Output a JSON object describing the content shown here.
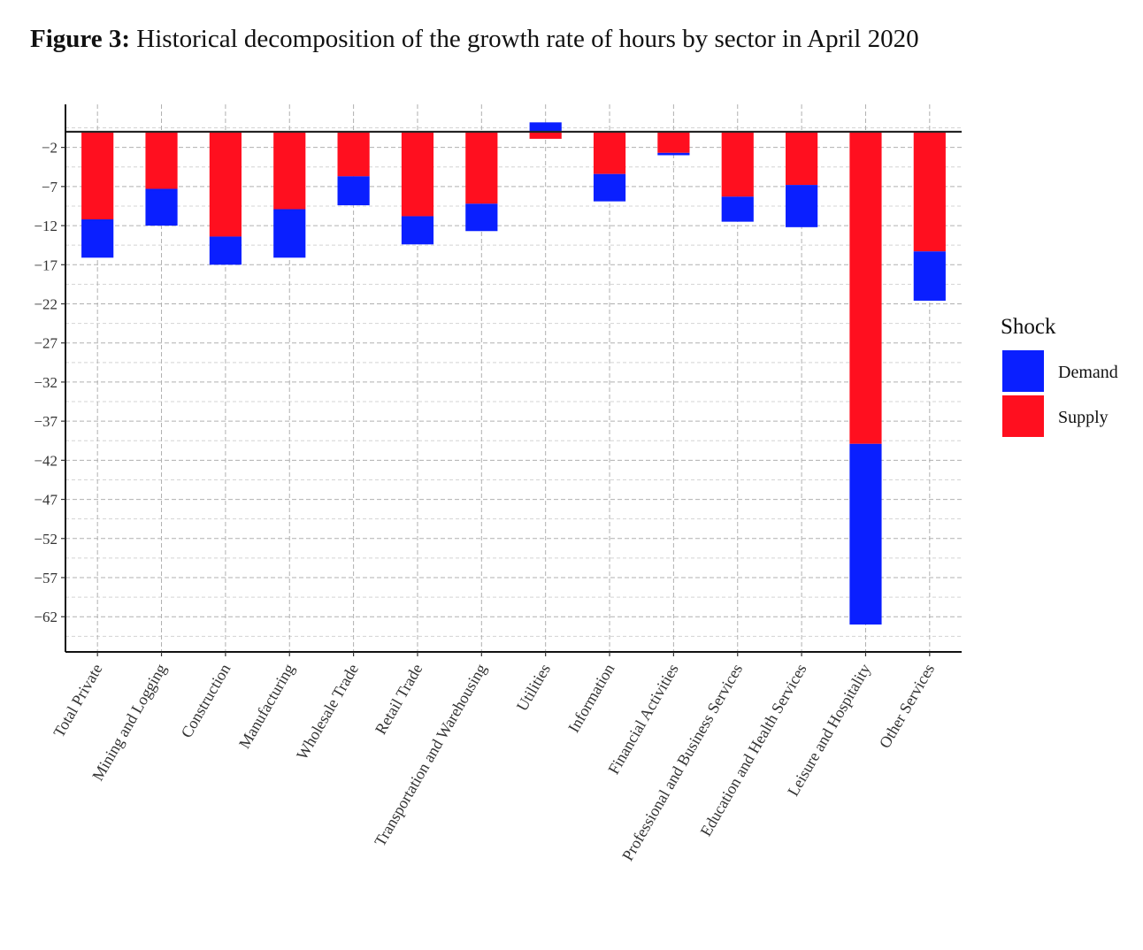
{
  "figure": {
    "label": "Figure 3:",
    "caption": "Historical decomposition of the growth rate of hours by sector in April 2020"
  },
  "chart_data": {
    "type": "bar",
    "stacked": true,
    "title": "Historical decomposition of the growth rate of hours by sector in April 2020",
    "xlabel": "",
    "ylabel": "",
    "categories": [
      "Total Private",
      "Mining and Logging",
      "Construction",
      "Manufacturing",
      "Wholesale Trade",
      "Retail Trade",
      "Transportation and Warehousing",
      "Utilities",
      "Information",
      "Financial Activities",
      "Professional and Business Services",
      "Education and Health Services",
      "Leisure and Hospitality",
      "Other Services"
    ],
    "series": [
      {
        "name": "Supply",
        "color": "#ff0f1f",
        "values": [
          -11.2,
          -7.3,
          -13.4,
          -9.9,
          -5.7,
          -10.8,
          -9.2,
          -0.9,
          -5.4,
          -2.7,
          -8.3,
          -6.8,
          -39.9,
          -15.3
        ]
      },
      {
        "name": "Demand",
        "color": "#0a1fff",
        "values": [
          -4.9,
          -4.7,
          -3.6,
          -6.2,
          -3.7,
          -3.6,
          -3.5,
          1.2,
          -3.5,
          -0.3,
          -3.2,
          -5.4,
          -23.1,
          -6.3
        ]
      }
    ],
    "yticks": [
      -2,
      -7,
      -12,
      -17,
      -22,
      -27,
      -32,
      -37,
      -42,
      -47,
      -52,
      -57,
      -62
    ],
    "ylim": [
      -66.5,
      3.5
    ],
    "zero_line": 0,
    "grid": true,
    "legend": {
      "title": "Shock",
      "position": "right",
      "entries": [
        {
          "name": "Demand",
          "color": "#0a1fff"
        },
        {
          "name": "Supply",
          "color": "#ff0f1f"
        }
      ]
    }
  }
}
